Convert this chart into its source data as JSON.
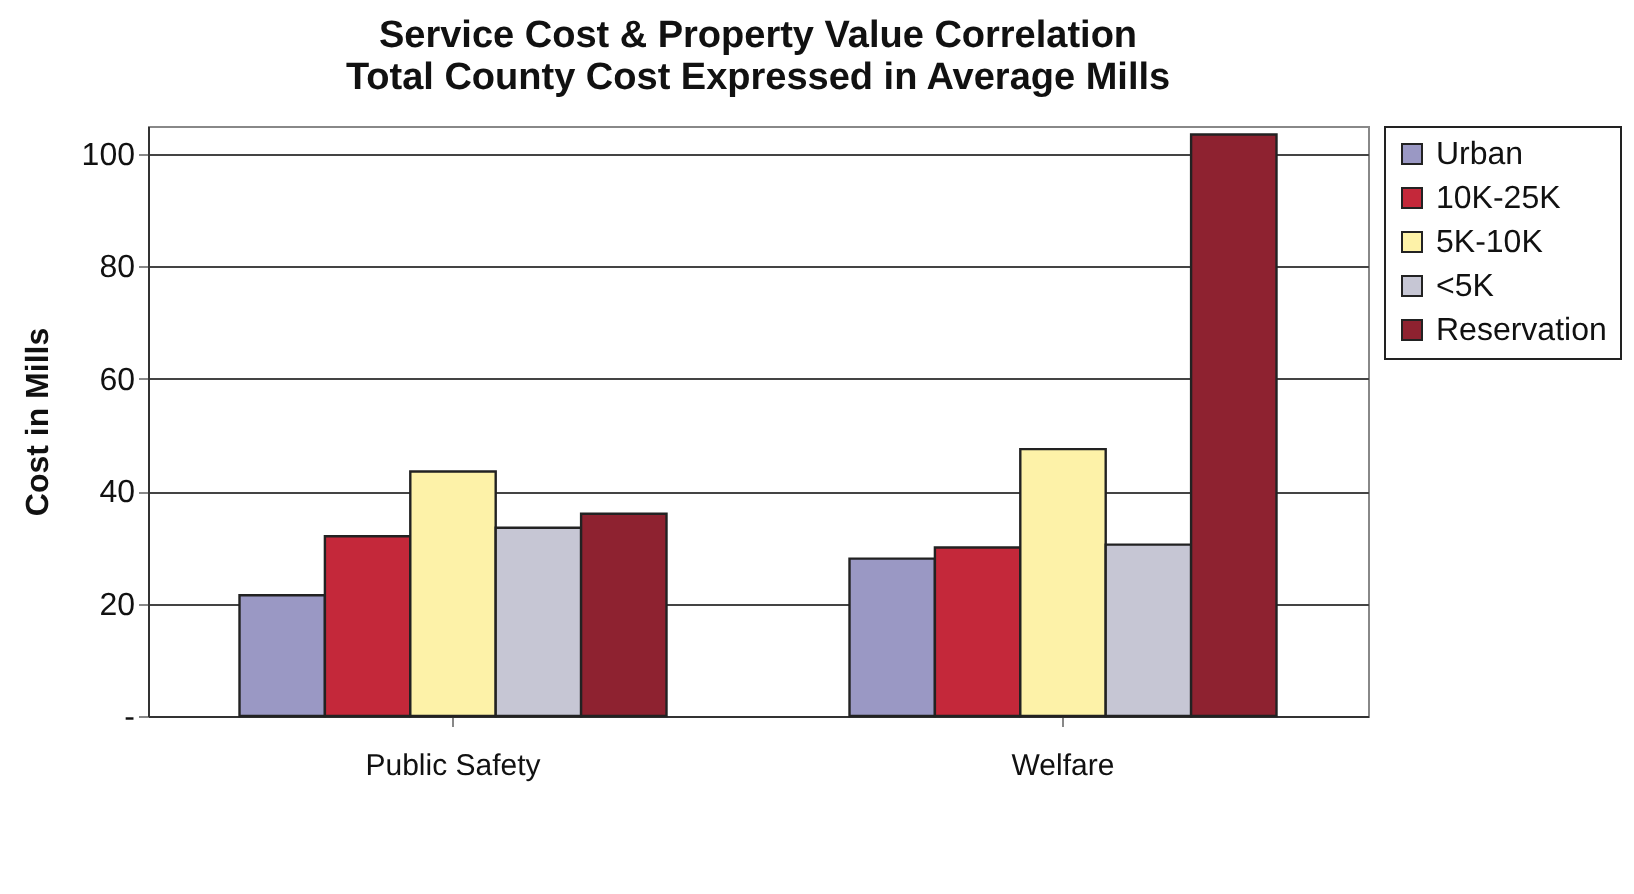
{
  "chart_data": {
    "type": "bar",
    "title": [
      "Service Cost & Property Value Correlation",
      "Total County Cost Expressed in Average Mills"
    ],
    "ylabel": "Cost in Mills",
    "categories": [
      "Public Safety",
      "Welfare"
    ],
    "series": [
      {
        "name": "Urban",
        "color": "#9a98c4",
        "values": [
          21.5,
          28
        ]
      },
      {
        "name": "10K-25K",
        "color": "#c4283a",
        "values": [
          32,
          30
        ]
      },
      {
        "name": "5K-10K",
        "color": "#fdf2a8",
        "values": [
          43.5,
          47.5
        ]
      },
      {
        "name": "<5K",
        "color": "#c6c6d4",
        "values": [
          33.5,
          30.5
        ]
      },
      {
        "name": "Reservation",
        "color": "#8e2230",
        "values": [
          36,
          103.5
        ]
      }
    ],
    "ylim": [
      0,
      105
    ],
    "yticks": [
      {
        "value": 0,
        "label": "-"
      },
      20,
      40,
      60,
      80,
      100
    ],
    "grid": "y",
    "legend": "right"
  }
}
